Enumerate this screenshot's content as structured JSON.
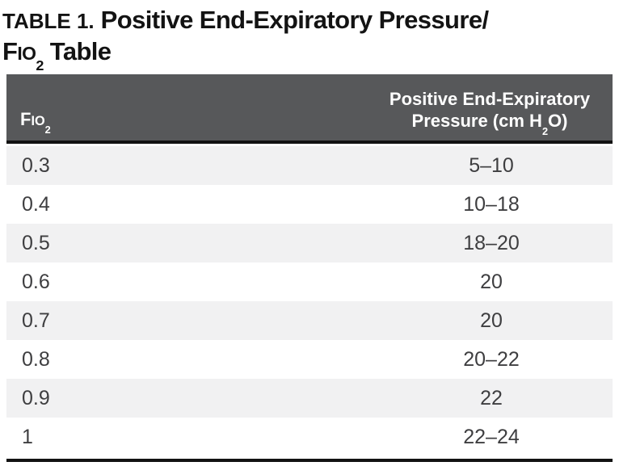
{
  "title": {
    "label": "TABLE 1.",
    "line1": "Positive End-Expiratory Pressure/",
    "fio2": {
      "f": "F",
      "io": "IO",
      "sub": "2"
    },
    "line2_rest": " Table"
  },
  "table": {
    "header": {
      "fio2": {
        "f": "F",
        "io": "IO",
        "sub": "2"
      },
      "peep_line1": "Positive End-Expiratory",
      "peep_line2_pre": "Pressure (cm H",
      "peep_line2_sub": "2",
      "peep_line2_post": "O)"
    },
    "rows": [
      {
        "fio2": "0.3",
        "peep": "5–10"
      },
      {
        "fio2": "0.4",
        "peep": "10–18"
      },
      {
        "fio2": "0.5",
        "peep": "18–20"
      },
      {
        "fio2": "0.6",
        "peep": "20"
      },
      {
        "fio2": "0.7",
        "peep": "20"
      },
      {
        "fio2": "0.8",
        "peep": "20–22"
      },
      {
        "fio2": "0.9",
        "peep": "22"
      },
      {
        "fio2": "1",
        "peep": "22–24"
      }
    ]
  },
  "colors": {
    "header_bg": "#57585A",
    "row_alt_bg": "#F1F1F2",
    "rule_black": "#121212",
    "body_text": "#3E3E40",
    "header_text": "#FFFFFF"
  }
}
